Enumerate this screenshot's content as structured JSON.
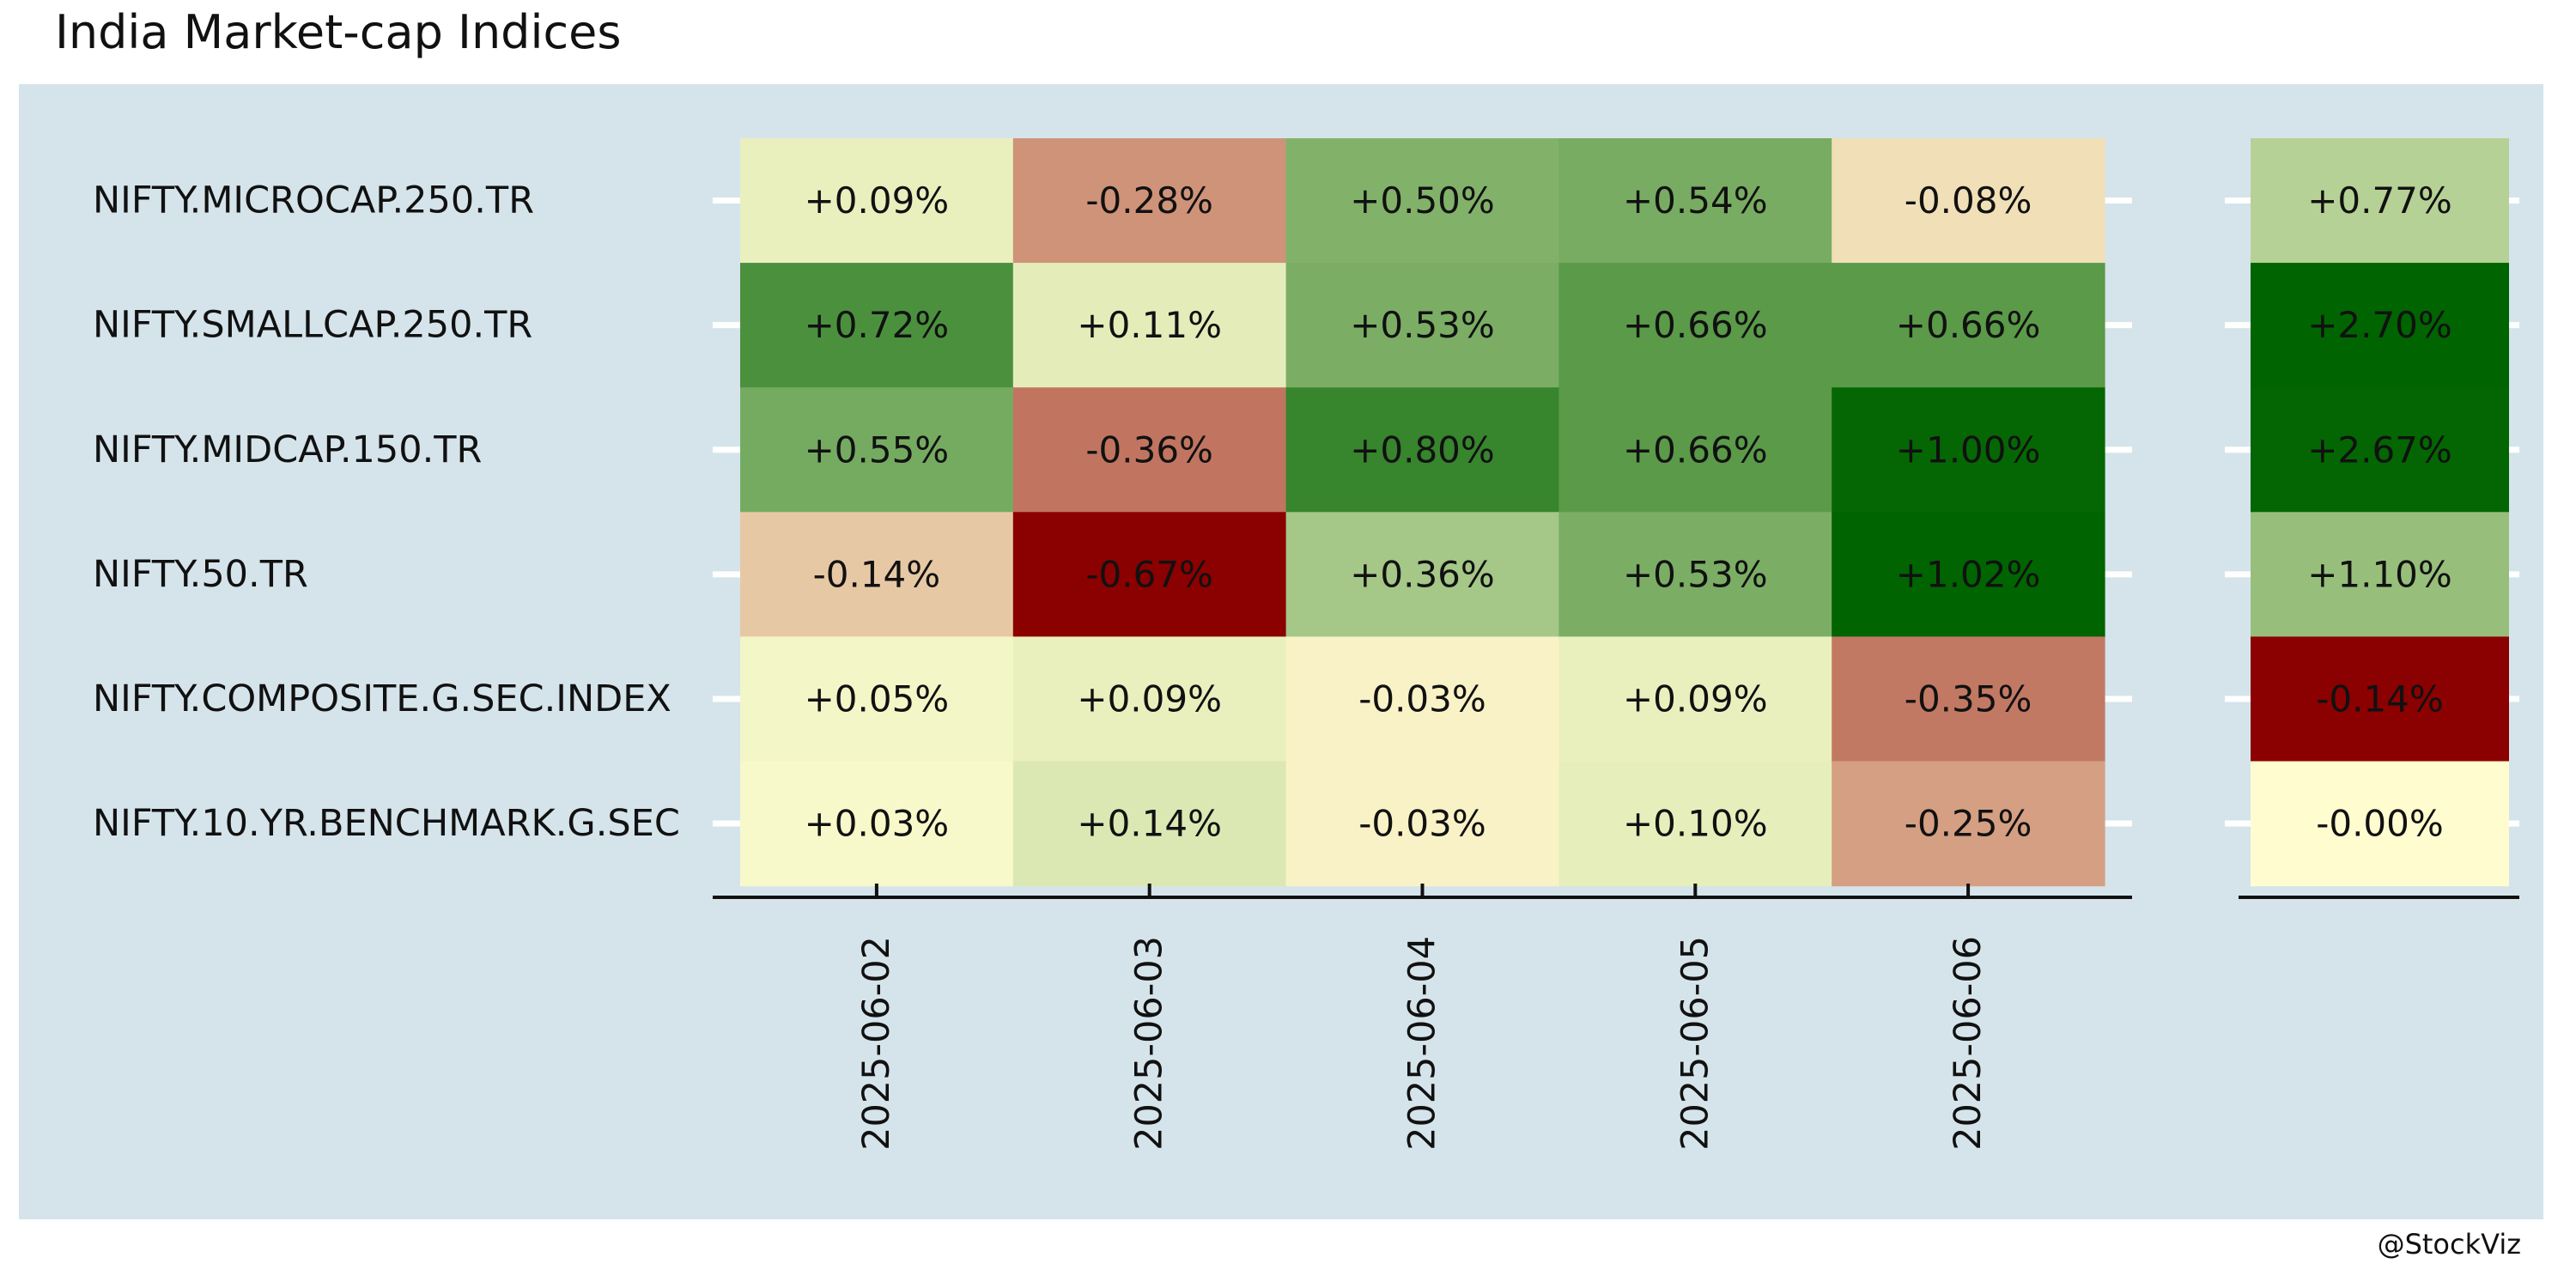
{
  "chart_data": {
    "type": "heatmap",
    "title": "India Market-cap Indices",
    "caption": "@StockViz",
    "rows": [
      "NIFTY.MICROCAP.250.TR",
      "NIFTY.SMALLCAP.250.TR",
      "NIFTY.MIDCAP.150.TR",
      "NIFTY.50.TR",
      "NIFTY.COMPOSITE.G.SEC.INDEX",
      "NIFTY.10.YR.BENCHMARK.G.SEC"
    ],
    "columns": [
      "2025-06-02",
      "2025-06-03",
      "2025-06-04",
      "2025-06-05",
      "2025-06-06"
    ],
    "values": [
      [
        0.09,
        -0.28,
        0.5,
        0.54,
        -0.08
      ],
      [
        0.72,
        0.11,
        0.53,
        0.66,
        0.66
      ],
      [
        0.55,
        -0.36,
        0.8,
        0.66,
        1.0
      ],
      [
        -0.14,
        -0.67,
        0.36,
        0.53,
        1.02
      ],
      [
        0.05,
        0.09,
        -0.03,
        0.09,
        -0.35
      ],
      [
        0.03,
        0.14,
        -0.03,
        0.1,
        -0.25
      ]
    ],
    "labels": [
      [
        "+0.09%",
        "-0.28%",
        "+0.50%",
        "+0.54%",
        "-0.08%"
      ],
      [
        "+0.72%",
        "+0.11%",
        "+0.53%",
        "+0.66%",
        "+0.66%"
      ],
      [
        "+0.55%",
        "-0.36%",
        "+0.80%",
        "+0.66%",
        "+1.00%"
      ],
      [
        "-0.14%",
        "-0.67%",
        "+0.36%",
        "+0.53%",
        "+1.02%"
      ],
      [
        "+0.05%",
        "+0.09%",
        "-0.03%",
        "+0.09%",
        "-0.35%"
      ],
      [
        "+0.03%",
        "+0.14%",
        "-0.03%",
        "+0.10%",
        "-0.25%"
      ]
    ],
    "totals": [
      0.77,
      2.7,
      2.67,
      1.1,
      -0.14,
      -0.0
    ],
    "total_labels": [
      "+0.77%",
      "+2.70%",
      "+2.67%",
      "+1.10%",
      "-0.14%",
      "-0.00%"
    ],
    "colors": {
      "panel_background": "#d5e4eb",
      "low": "#8b0000",
      "mid": "#fffdd0",
      "high": "#006400",
      "text": "#111111",
      "tick": "#ffffff",
      "axis_line": "#111111"
    }
  }
}
